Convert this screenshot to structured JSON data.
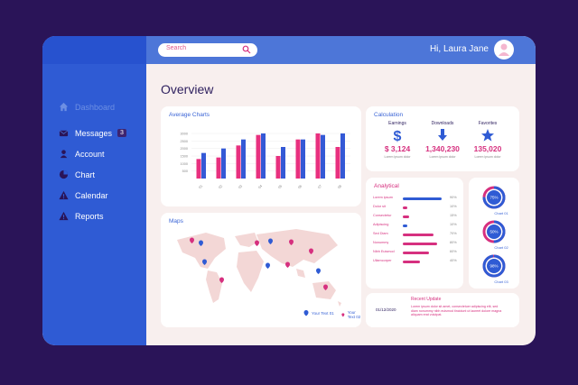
{
  "header": {
    "search_placeholder": "Search",
    "greeting": "Hi, Laura Jane"
  },
  "sidebar": {
    "items": [
      {
        "label": "Dashboard",
        "icon": "home-icon"
      },
      {
        "label": "Messages",
        "icon": "mail-icon",
        "badge": "3"
      },
      {
        "label": "Account",
        "icon": "user-icon"
      },
      {
        "label": "Chart",
        "icon": "pie-icon"
      },
      {
        "label": "Calendar",
        "icon": "warning-icon"
      },
      {
        "label": "Reports",
        "icon": "warning-icon"
      }
    ]
  },
  "main": {
    "title": "Overview"
  },
  "average_charts": {
    "title": "Average Charts",
    "chart_data": {
      "type": "bar",
      "categories": [
        "01",
        "02",
        "03",
        "04",
        "05",
        "06",
        "07",
        "08"
      ],
      "yticks": [
        "3000",
        "2500",
        "2000",
        "1500",
        "1000",
        "500"
      ],
      "ylim": [
        0,
        3000
      ],
      "series": [
        {
          "values": [
            1300,
            1400,
            2200,
            2900,
            1500,
            2600,
            3000,
            2100
          ]
        },
        {
          "values": [
            1700,
            2000,
            2600,
            3000,
            2100,
            2600,
            2900,
            3000
          ]
        }
      ]
    }
  },
  "calculation": {
    "title": "Calculation",
    "items": [
      {
        "label": "Earnings",
        "value": "$ 3,124",
        "sub": "Lorem ipsum dolor",
        "icon": "dollar-icon"
      },
      {
        "label": "Downloads",
        "value": "1,340,230",
        "sub": "Lorem ipsum dolor",
        "icon": "download-arrow-icon"
      },
      {
        "label": "Favorites",
        "value": "135,020",
        "sub": "Lorem ipsum dolor",
        "icon": "star-icon"
      }
    ]
  },
  "analytical": {
    "title": "Analytical",
    "rows": [
      {
        "name": "Lorem ipsum",
        "percent": "90%",
        "value": 90
      },
      {
        "name": "Dolor sit",
        "percent": "10%",
        "value": 10
      },
      {
        "name": "Consectetur",
        "percent": "15%",
        "value": 15
      },
      {
        "name": "Adipiscing",
        "percent": "10%",
        "value": 10
      },
      {
        "name": "Sed Diam",
        "percent": "70%",
        "value": 70
      },
      {
        "name": "Nonummy",
        "percent": "80%",
        "value": 80
      },
      {
        "name": "Nibh Euismod",
        "percent": "60%",
        "value": 60
      },
      {
        "name": "Ullamcorper",
        "percent": "40%",
        "value": 40
      }
    ]
  },
  "donuts": [
    {
      "percent": "75%",
      "value": 75,
      "label": "Chart 01"
    },
    {
      "percent": "50%",
      "value": 50,
      "label": "Chart 02"
    },
    {
      "percent": "98%",
      "value": 98,
      "label": "Chart 03"
    }
  ],
  "maps": {
    "title": "Maps",
    "legend": [
      "Your Text 01",
      "Your Text 02"
    ]
  },
  "recent_update": {
    "title": "Recent Update",
    "date": "01/12/2020",
    "text": "Lorem ipsum dolor sit amet, consectetuer adipiscing elit, sed diam nonummy nibh euismod tincidunt ut laoreet dolore magna aliquam erat volutpat."
  },
  "colors": {
    "primary": "#2f5bd4",
    "accent": "#d6307f",
    "background": "#2a1458",
    "panel": "#f8efee"
  }
}
